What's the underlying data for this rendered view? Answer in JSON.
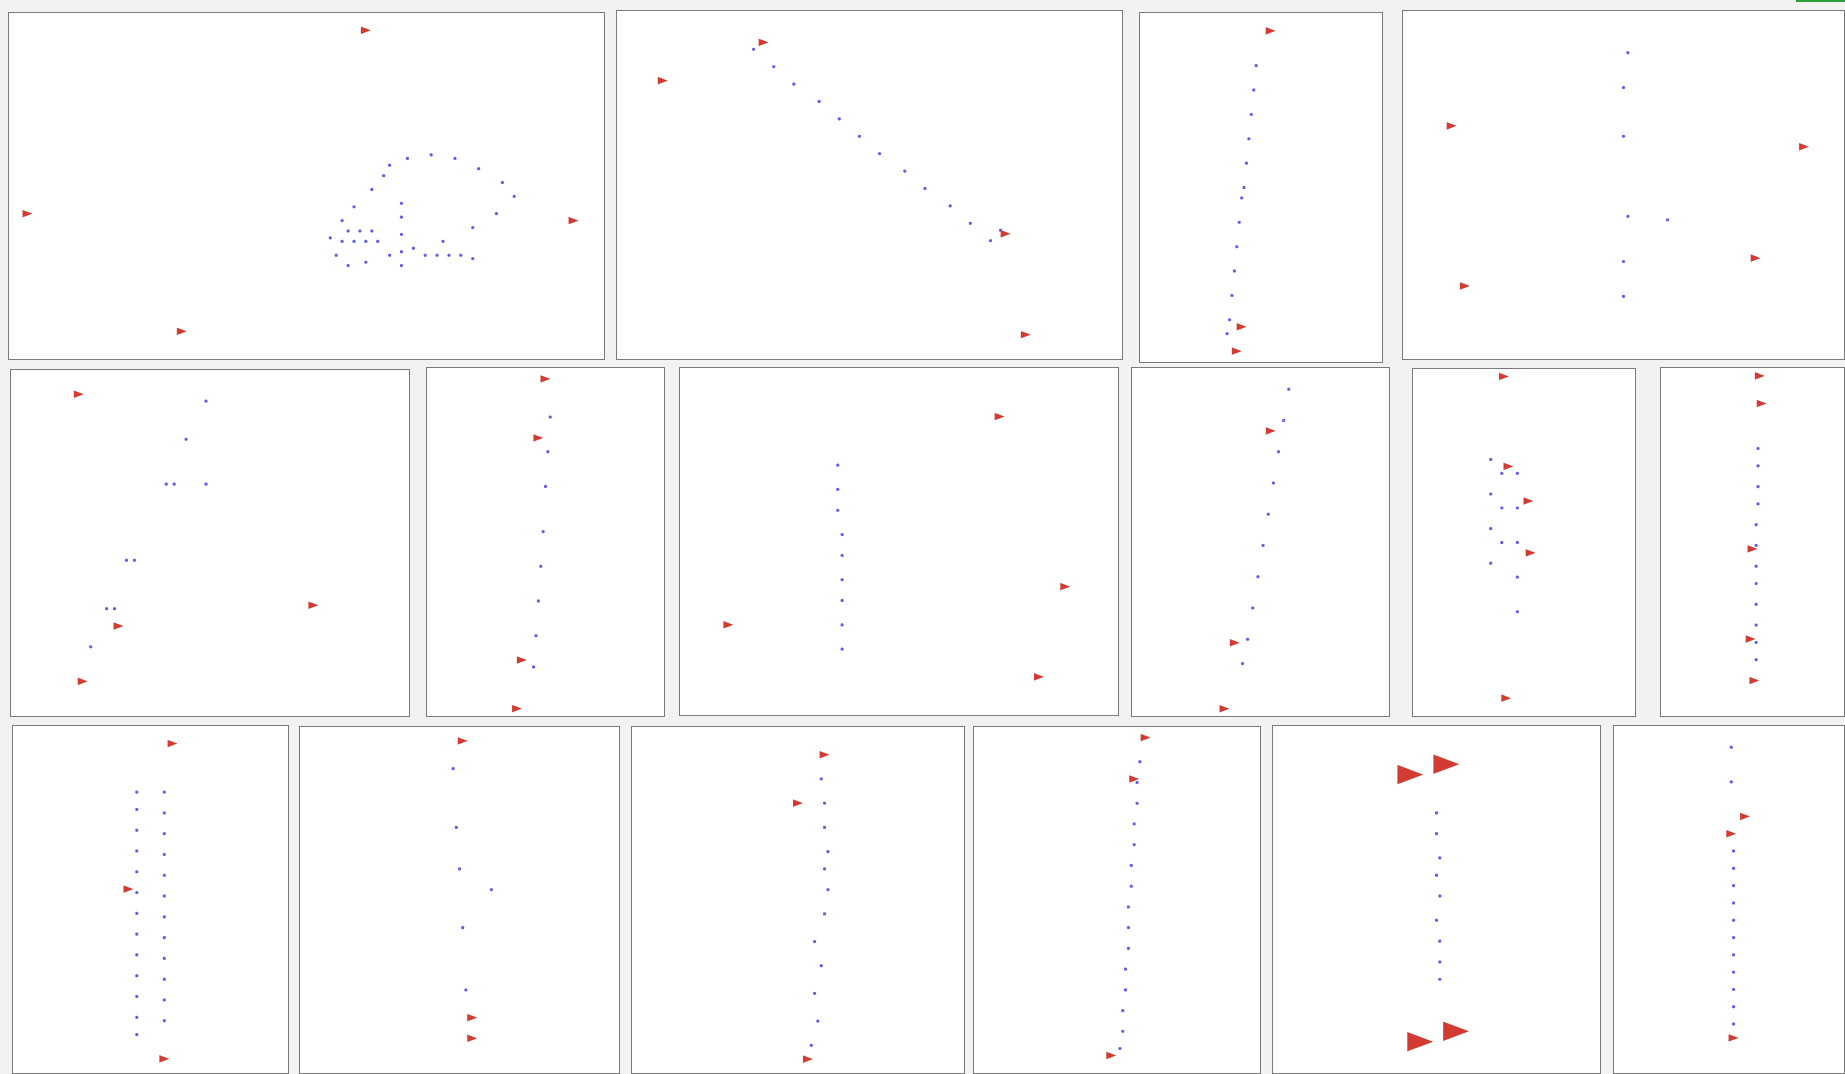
{
  "colors": {
    "marker": "#d23a32",
    "dot": "#3a3adf",
    "border": "#7a7a7a",
    "accent": "#2e9d3a"
  },
  "icons": {
    "marker": "red-triangle-marker",
    "point": "blue-dot"
  },
  "chart_data": [
    {
      "type": "scatter",
      "grid": false,
      "xlim": [
        0,
        100
      ],
      "ylim": [
        0,
        100
      ],
      "markers": [
        [
          60,
          5
        ],
        [
          3,
          58
        ],
        [
          95,
          60
        ],
        [
          29,
          92
        ]
      ],
      "points": [
        [
          64,
          44
        ],
        [
          67,
          42
        ],
        [
          71,
          41
        ],
        [
          75,
          42
        ],
        [
          79,
          45
        ],
        [
          83,
          49
        ],
        [
          85,
          53
        ],
        [
          82,
          58
        ],
        [
          78,
          62
        ],
        [
          73,
          66
        ],
        [
          68,
          68
        ],
        [
          64,
          70
        ],
        [
          60,
          72
        ],
        [
          57,
          73
        ],
        [
          55,
          70
        ],
        [
          54,
          65
        ],
        [
          56,
          60
        ],
        [
          58,
          56
        ],
        [
          61,
          51
        ],
        [
          63,
          47
        ],
        [
          66,
          55
        ],
        [
          66,
          59
        ],
        [
          66,
          64
        ],
        [
          66,
          69
        ],
        [
          66,
          73
        ],
        [
          57,
          63
        ],
        [
          59,
          63
        ],
        [
          61,
          63
        ],
        [
          56,
          66
        ],
        [
          58,
          66
        ],
        [
          60,
          66
        ],
        [
          62,
          66
        ],
        [
          70,
          70
        ],
        [
          72,
          70
        ],
        [
          74,
          70
        ],
        [
          76,
          70
        ],
        [
          78,
          71
        ]
      ]
    },
    {
      "type": "scatter",
      "grid": false,
      "xlim": [
        0,
        100
      ],
      "ylim": [
        0,
        100
      ],
      "markers": [
        [
          29,
          9
        ],
        [
          9,
          20
        ],
        [
          77,
          64
        ],
        [
          81,
          93
        ]
      ],
      "points": [
        [
          27,
          11
        ],
        [
          31,
          16
        ],
        [
          35,
          21
        ],
        [
          40,
          26
        ],
        [
          44,
          31
        ],
        [
          48,
          36
        ],
        [
          52,
          41
        ],
        [
          57,
          46
        ],
        [
          61,
          51
        ],
        [
          66,
          56
        ],
        [
          70,
          61
        ],
        [
          74,
          66
        ],
        [
          76,
          63
        ]
      ]
    },
    {
      "type": "scatter",
      "grid": false,
      "xlim": [
        0,
        100
      ],
      "ylim": [
        0,
        100
      ],
      "markers": [
        [
          54,
          5
        ],
        [
          42,
          90
        ],
        [
          40,
          97
        ]
      ],
      "points": [
        [
          48,
          15
        ],
        [
          47,
          22
        ],
        [
          46,
          29
        ],
        [
          45,
          36
        ],
        [
          44,
          43
        ],
        [
          43,
          50
        ],
        [
          42,
          53
        ],
        [
          41,
          60
        ],
        [
          40,
          67
        ],
        [
          39,
          74
        ],
        [
          38,
          81
        ],
        [
          37,
          88
        ],
        [
          36,
          92
        ]
      ]
    },
    {
      "type": "scatter",
      "grid": false,
      "xlim": [
        0,
        100
      ],
      "ylim": [
        0,
        100
      ],
      "markers": [
        [
          11,
          33
        ],
        [
          91,
          39
        ],
        [
          14,
          79
        ],
        [
          80,
          71
        ]
      ],
      "points": [
        [
          51,
          12
        ],
        [
          50,
          22
        ],
        [
          50,
          36
        ],
        [
          51,
          59
        ],
        [
          50,
          72
        ],
        [
          50,
          82
        ],
        [
          60,
          60
        ]
      ]
    },
    {
      "type": "scatter",
      "grid": false,
      "xlim": [
        0,
        100
      ],
      "ylim": [
        0,
        100
      ],
      "markers": [
        [
          17,
          7
        ],
        [
          76,
          68
        ],
        [
          27,
          74
        ],
        [
          18,
          90
        ]
      ],
      "points": [
        [
          49,
          9
        ],
        [
          44,
          20
        ],
        [
          39,
          33
        ],
        [
          41,
          33
        ],
        [
          49,
          33
        ],
        [
          29,
          55
        ],
        [
          31,
          55
        ],
        [
          24,
          69
        ],
        [
          26,
          69
        ],
        [
          20,
          80
        ]
      ]
    },
    {
      "type": "scatter",
      "grid": false,
      "xlim": [
        0,
        100
      ],
      "ylim": [
        0,
        100
      ],
      "markers": [
        [
          50,
          3
        ],
        [
          47,
          20
        ],
        [
          40,
          84
        ],
        [
          38,
          98
        ]
      ],
      "points": [
        [
          52,
          14
        ],
        [
          51,
          24
        ],
        [
          50,
          34
        ],
        [
          49,
          47
        ],
        [
          48,
          57
        ],
        [
          47,
          67
        ],
        [
          46,
          77
        ],
        [
          45,
          86
        ]
      ]
    },
    {
      "type": "scatter",
      "grid": false,
      "xlim": [
        0,
        100
      ],
      "ylim": [
        0,
        100
      ],
      "markers": [
        [
          73,
          14
        ],
        [
          88,
          63
        ],
        [
          11,
          74
        ],
        [
          82,
          89
        ]
      ],
      "points": [
        [
          36,
          28
        ],
        [
          36,
          35
        ],
        [
          36,
          41
        ],
        [
          37,
          48
        ],
        [
          37,
          54
        ],
        [
          37,
          61
        ],
        [
          37,
          67
        ],
        [
          37,
          74
        ],
        [
          37,
          81
        ]
      ]
    },
    {
      "type": "scatter",
      "grid": false,
      "xlim": [
        0,
        100
      ],
      "ylim": [
        0,
        100
      ],
      "markers": [
        [
          54,
          18
        ],
        [
          40,
          79
        ],
        [
          36,
          98
        ]
      ],
      "points": [
        [
          61,
          6
        ],
        [
          59,
          15
        ],
        [
          57,
          24
        ],
        [
          55,
          33
        ],
        [
          53,
          42
        ],
        [
          51,
          51
        ],
        [
          49,
          60
        ],
        [
          47,
          69
        ],
        [
          45,
          78
        ],
        [
          43,
          85
        ]
      ]
    },
    {
      "type": "scatter",
      "grid": false,
      "xlim": [
        0,
        100
      ],
      "ylim": [
        0,
        100
      ],
      "markers": [
        [
          41,
          2
        ],
        [
          43,
          28
        ],
        [
          52,
          38
        ],
        [
          53,
          53
        ],
        [
          42,
          95
        ]
      ],
      "points": [
        [
          35,
          26
        ],
        [
          35,
          36
        ],
        [
          35,
          46
        ],
        [
          35,
          56
        ],
        [
          40,
          30
        ],
        [
          40,
          40
        ],
        [
          40,
          50
        ],
        [
          47,
          30
        ],
        [
          47,
          40
        ],
        [
          47,
          50
        ],
        [
          47,
          60
        ],
        [
          47,
          70
        ]
      ]
    },
    {
      "type": "scatter",
      "grid": false,
      "xlim": [
        0,
        100
      ],
      "ylim": [
        0,
        100
      ],
      "markers": [
        [
          54,
          2
        ],
        [
          55,
          10
        ],
        [
          50,
          52
        ],
        [
          49,
          78
        ],
        [
          51,
          90
        ]
      ],
      "points": [
        [
          53,
          23
        ],
        [
          53,
          28
        ],
        [
          53,
          34
        ],
        [
          53,
          39
        ],
        [
          52,
          45
        ],
        [
          52,
          51
        ],
        [
          52,
          57
        ],
        [
          52,
          62
        ],
        [
          52,
          68
        ],
        [
          52,
          74
        ],
        [
          52,
          79
        ],
        [
          52,
          84
        ]
      ]
    },
    {
      "type": "scatter",
      "grid": false,
      "xlim": [
        0,
        100
      ],
      "ylim": [
        0,
        100
      ],
      "markers": [
        [
          58,
          5
        ],
        [
          42,
          47
        ],
        [
          55,
          96
        ]
      ],
      "points": [
        [
          45,
          19
        ],
        [
          45,
          24
        ],
        [
          45,
          30
        ],
        [
          45,
          36
        ],
        [
          45,
          42
        ],
        [
          45,
          48
        ],
        [
          45,
          54
        ],
        [
          45,
          60
        ],
        [
          45,
          66
        ],
        [
          45,
          72
        ],
        [
          45,
          78
        ],
        [
          45,
          84
        ],
        [
          45,
          89
        ],
        [
          55,
          19
        ],
        [
          55,
          25
        ],
        [
          55,
          31
        ],
        [
          55,
          37
        ],
        [
          55,
          43
        ],
        [
          55,
          49
        ],
        [
          55,
          55
        ],
        [
          55,
          61
        ],
        [
          55,
          67
        ],
        [
          55,
          73
        ],
        [
          55,
          79
        ],
        [
          55,
          85
        ]
      ]
    },
    {
      "type": "scatter",
      "grid": false,
      "xlim": [
        0,
        100
      ],
      "ylim": [
        0,
        100
      ],
      "markers": [
        [
          51,
          4
        ],
        [
          54,
          84
        ],
        [
          54,
          90
        ]
      ],
      "points": [
        [
          48,
          12
        ],
        [
          49,
          29
        ],
        [
          50,
          41
        ],
        [
          60,
          47
        ],
        [
          51,
          58
        ],
        [
          52,
          76
        ]
      ]
    },
    {
      "type": "scatter",
      "grid": false,
      "xlim": [
        0,
        100
      ],
      "ylim": [
        0,
        100
      ],
      "markers": [
        [
          58,
          8
        ],
        [
          50,
          22
        ],
        [
          53,
          96
        ]
      ],
      "points": [
        [
          57,
          15
        ],
        [
          58,
          22
        ],
        [
          58,
          29
        ],
        [
          59,
          36
        ],
        [
          58,
          41
        ],
        [
          59,
          47
        ],
        [
          58,
          54
        ],
        [
          55,
          62
        ],
        [
          57,
          69
        ],
        [
          55,
          77
        ],
        [
          56,
          85
        ],
        [
          54,
          92
        ]
      ]
    },
    {
      "type": "scatter",
      "grid": false,
      "xlim": [
        0,
        100
      ],
      "ylim": [
        0,
        100
      ],
      "markers": [
        [
          60,
          3
        ],
        [
          56,
          15
        ],
        [
          48,
          95
        ]
      ],
      "points": [
        [
          58,
          10
        ],
        [
          57,
          16
        ],
        [
          57,
          22
        ],
        [
          56,
          28
        ],
        [
          56,
          34
        ],
        [
          55,
          40
        ],
        [
          55,
          46
        ],
        [
          54,
          52
        ],
        [
          54,
          58
        ],
        [
          54,
          64
        ],
        [
          53,
          70
        ],
        [
          53,
          76
        ],
        [
          52,
          82
        ],
        [
          52,
          88
        ],
        [
          51,
          93
        ]
      ]
    },
    {
      "type": "scatter",
      "grid": false,
      "xlim": [
        0,
        100
      ],
      "ylim": [
        0,
        100
      ],
      "markers": [
        [
          42,
          14
        ],
        [
          53,
          11
        ],
        [
          45,
          91
        ],
        [
          56,
          88
        ]
      ],
      "points": [
        [
          50,
          25
        ],
        [
          50,
          31
        ],
        [
          51,
          38
        ],
        [
          50,
          43
        ],
        [
          51,
          49
        ],
        [
          50,
          56
        ],
        [
          51,
          62
        ],
        [
          51,
          68
        ],
        [
          51,
          73
        ]
      ]
    },
    {
      "type": "scatter",
      "grid": false,
      "xlim": [
        0,
        100
      ],
      "ylim": [
        0,
        100
      ],
      "markers": [
        [
          57,
          26
        ],
        [
          51,
          31
        ],
        [
          52,
          90
        ]
      ],
      "points": [
        [
          51,
          6
        ],
        [
          51,
          16
        ],
        [
          52,
          36
        ],
        [
          52,
          41
        ],
        [
          52,
          46
        ],
        [
          52,
          51
        ],
        [
          52,
          56
        ],
        [
          52,
          61
        ],
        [
          52,
          66
        ],
        [
          52,
          71
        ],
        [
          52,
          76
        ],
        [
          52,
          81
        ],
        [
          52,
          86
        ]
      ]
    }
  ]
}
